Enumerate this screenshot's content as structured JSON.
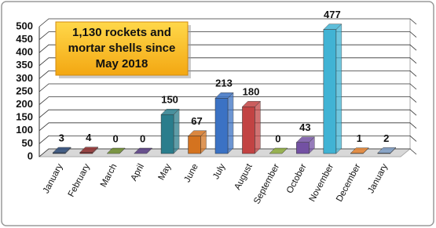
{
  "chart_data": {
    "type": "bar",
    "annotation_lines": [
      "1,130 rockets and",
      "mortar shells since",
      "May 2018"
    ],
    "categories": [
      "January",
      "February",
      "March",
      "April",
      "May",
      "June",
      "July",
      "August",
      "September",
      "October",
      "November",
      "December",
      "January"
    ],
    "values": [
      3,
      4,
      0,
      0,
      150,
      67,
      213,
      180,
      0,
      43,
      477,
      1,
      2
    ],
    "colors": [
      "#2c4a78",
      "#8c2b2b",
      "#6b8a2c",
      "#553a80",
      "#2a7d8c",
      "#d4731f",
      "#3b72c4",
      "#c24343",
      "#8cab3c",
      "#7351a3",
      "#41b3d4",
      "#e3822f",
      "#7c9cc4"
    ],
    "ylim": [
      0,
      500
    ],
    "yticks": [
      0,
      50,
      100,
      150,
      200,
      250,
      300,
      350,
      400,
      450,
      500
    ],
    "grid": true
  }
}
